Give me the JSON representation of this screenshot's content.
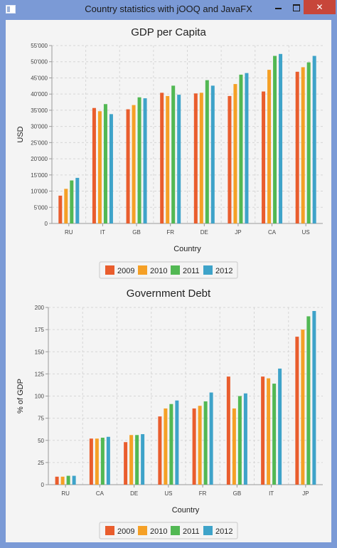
{
  "window": {
    "title": "Country statistics with jOOQ and JavaFX"
  },
  "colors": {
    "2009": "#e95d2d",
    "2010": "#f5a026",
    "2011": "#52b853",
    "2012": "#3ea3c9"
  },
  "chart_data": [
    {
      "type": "bar",
      "title": "GDP per Capita",
      "xlabel": "Country",
      "ylabel": "USD",
      "categories": [
        "RU",
        "IT",
        "GB",
        "FR",
        "DE",
        "JP",
        "CA",
        "US"
      ],
      "ylim": [
        0,
        55000
      ],
      "yticks": [
        0,
        5000,
        10000,
        15000,
        20000,
        25000,
        30000,
        35000,
        40000,
        45000,
        50000,
        55000
      ],
      "ytick_labels": [
        "0",
        "5'000",
        "10'000",
        "15'000",
        "20'000",
        "25'000",
        "30'000",
        "35'000",
        "40'000",
        "45'000",
        "50'000",
        "55'000"
      ],
      "grid": true,
      "legend": "bottom",
      "series": [
        {
          "name": "2009",
          "values": [
            8600,
            35700,
            35300,
            40400,
            40200,
            39400,
            40800,
            46900
          ]
        },
        {
          "name": "2010",
          "values": [
            10700,
            34700,
            36600,
            39400,
            40400,
            43100,
            47500,
            48300
          ]
        },
        {
          "name": "2011",
          "values": [
            13300,
            36900,
            39000,
            42600,
            44300,
            46000,
            51800,
            49800
          ]
        },
        {
          "name": "2012",
          "values": [
            14100,
            33800,
            38700,
            39800,
            42600,
            46500,
            52400,
            51800
          ]
        }
      ]
    },
    {
      "type": "bar",
      "title": "Government Debt",
      "xlabel": "Country",
      "ylabel": "% of GDP",
      "categories": [
        "RU",
        "CA",
        "DE",
        "US",
        "FR",
        "GB",
        "IT",
        "JP"
      ],
      "ylim": [
        0,
        200
      ],
      "yticks": [
        0,
        25,
        50,
        75,
        100,
        125,
        150,
        175,
        200
      ],
      "ytick_labels": [
        "0",
        "25",
        "50",
        "75",
        "100",
        "125",
        "150",
        "175",
        "200"
      ],
      "grid": true,
      "legend": "bottom",
      "series": [
        {
          "name": "2009",
          "values": [
            9,
            52,
            48,
            77,
            86,
            122,
            122,
            167
          ]
        },
        {
          "name": "2010",
          "values": [
            9,
            52,
            56,
            86,
            89,
            86,
            120,
            175
          ]
        },
        {
          "name": "2011",
          "values": [
            10,
            53,
            56,
            91,
            94,
            100,
            114,
            190
          ]
        },
        {
          "name": "2012",
          "values": [
            10,
            54,
            57,
            95,
            104,
            103,
            131,
            196
          ]
        }
      ]
    }
  ]
}
